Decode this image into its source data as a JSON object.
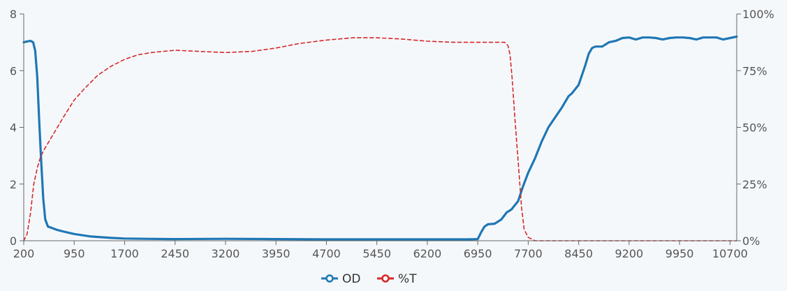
{
  "chart_data": {
    "type": "line",
    "title": "",
    "xlabel": "",
    "ylabel": "",
    "y2label": "",
    "xlim": [
      200,
      10800
    ],
    "ylim": [
      0,
      8
    ],
    "y2lim": [
      0,
      100
    ],
    "x_ticks": [
      200,
      950,
      1700,
      2450,
      3200,
      3950,
      4700,
      5450,
      6200,
      6950,
      7700,
      8450,
      9200,
      9950,
      10700
    ],
    "x_tick_labels": [
      "200",
      "950",
      "1700",
      "2450",
      "3200",
      "3950",
      "4700",
      "5450",
      "6200",
      "6950",
      "7700",
      "8450",
      "9200",
      "9950",
      "10700"
    ],
    "y_ticks": [
      0,
      2,
      4,
      6,
      8
    ],
    "y_tick_labels": [
      "0",
      "2",
      "4",
      "6",
      "8"
    ],
    "y2_ticks": [
      0,
      25,
      50,
      75,
      100
    ],
    "y2_tick_labels": [
      "0%",
      "25%",
      "50%",
      "75%",
      "100%"
    ],
    "grid": false,
    "legend_position": "bottom-center",
    "series": [
      {
        "name": "OD",
        "axis": "left",
        "color": "#1f77b4",
        "line_style": "solid",
        "x": [
          200,
          250,
          300,
          340,
          370,
          400,
          430,
          460,
          490,
          520,
          560,
          620,
          700,
          800,
          950,
          1200,
          1500,
          1700,
          2000,
          2450,
          3200,
          3950,
          4700,
          5450,
          6200,
          6800,
          6950,
          7000,
          7050,
          7100,
          7200,
          7300,
          7380,
          7450,
          7550,
          7620,
          7700,
          7800,
          7900,
          8000,
          8100,
          8200,
          8300,
          8350,
          8450,
          8550,
          8600,
          8650,
          8700,
          8800,
          8900,
          9000,
          9100,
          9200,
          9300,
          9400,
          9500,
          9600,
          9700,
          9800,
          9900,
          10000,
          10100,
          10200,
          10300,
          10400,
          10500,
          10600,
          10700,
          10800
        ],
        "values": [
          7.0,
          7.03,
          7.05,
          7.0,
          6.7,
          5.8,
          4.2,
          2.8,
          1.5,
          0.75,
          0.5,
          0.45,
          0.38,
          0.32,
          0.24,
          0.15,
          0.1,
          0.08,
          0.07,
          0.06,
          0.07,
          0.06,
          0.05,
          0.05,
          0.05,
          0.05,
          0.06,
          0.3,
          0.5,
          0.58,
          0.6,
          0.75,
          1.0,
          1.1,
          1.4,
          1.9,
          2.4,
          2.9,
          3.5,
          4.0,
          4.35,
          4.7,
          5.1,
          5.2,
          5.5,
          6.2,
          6.6,
          6.8,
          6.85,
          6.85,
          7.0,
          7.05,
          7.15,
          7.17,
          7.1,
          7.17,
          7.17,
          7.15,
          7.1,
          7.15,
          7.17,
          7.17,
          7.15,
          7.1,
          7.17,
          7.17,
          7.17,
          7.1,
          7.15,
          7.2
        ]
      },
      {
        "name": "%T",
        "axis": "right",
        "color": "#d62728",
        "line_style": "dashed",
        "x": [
          200,
          250,
          300,
          350,
          400,
          450,
          500,
          600,
          700,
          800,
          950,
          1100,
          1300,
          1500,
          1700,
          1900,
          2100,
          2450,
          2800,
          3200,
          3600,
          3950,
          4300,
          4700,
          5100,
          5450,
          5800,
          6200,
          6600,
          6950,
          7200,
          7350,
          7400,
          7430,
          7460,
          7500,
          7550,
          7600,
          7640,
          7700,
          7800,
          8000,
          9000,
          10000,
          10800
        ],
        "values": [
          0,
          3,
          12,
          25,
          32,
          37,
          40,
          45,
          50,
          55,
          62,
          67,
          73,
          77,
          80,
          82,
          83,
          84,
          83.5,
          83,
          83.5,
          85,
          87,
          88.5,
          89.5,
          89.5,
          89,
          88,
          87.5,
          87.5,
          87.5,
          87.5,
          86,
          82,
          72,
          55,
          35,
          15,
          5,
          1.5,
          0,
          0,
          0,
          0,
          0
        ]
      }
    ]
  }
}
